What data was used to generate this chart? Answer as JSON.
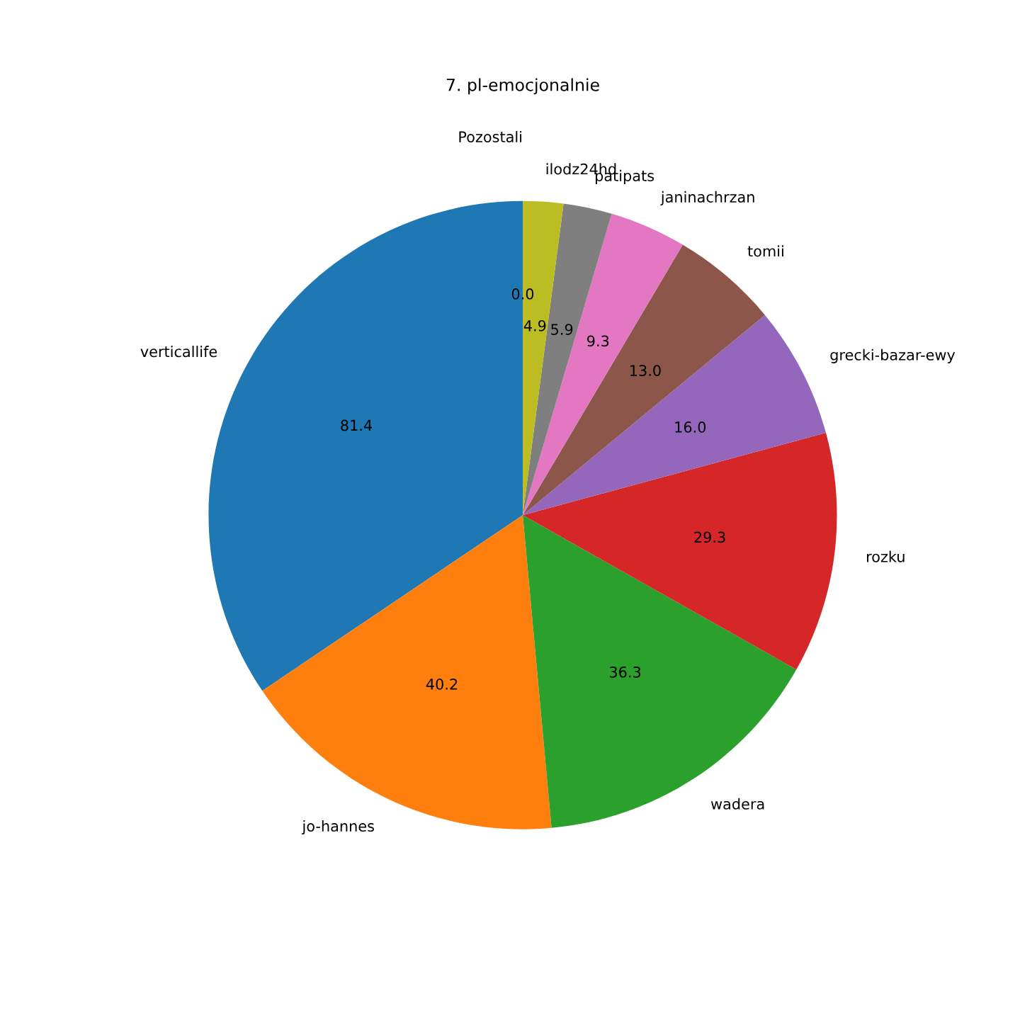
{
  "chart_data": {
    "type": "pie",
    "title": "7. pl-emocjonalnie",
    "categories": [
      "verticallife",
      "jo-hannes",
      "wadera",
      "rozku",
      "grecki-bazar-ewy",
      "tomii",
      "janinachrzan",
      "patipats",
      "ilodz24hd",
      "Pozostali"
    ],
    "values": [
      81.4,
      40.2,
      36.3,
      29.3,
      16.0,
      13.0,
      9.3,
      5.9,
      4.9,
      0.0
    ],
    "value_labels": [
      "81.4",
      "40.2",
      "36.3",
      "29.3",
      "16.0",
      "13.0",
      "9.3",
      "5.9",
      "4.9",
      "0.0"
    ],
    "colors": [
      "#1f77b4",
      "#ff7f0e",
      "#2ca02c",
      "#d62728",
      "#9467bd",
      "#8c564b",
      "#e377c2",
      "#7f7f7f",
      "#bcbd22",
      "#17becf"
    ]
  }
}
